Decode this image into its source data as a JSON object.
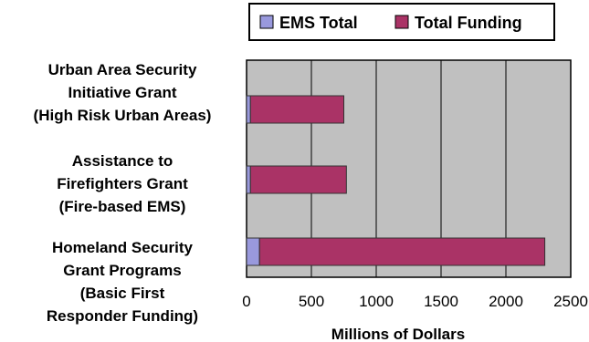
{
  "chart_data": {
    "type": "bar",
    "orientation": "horizontal",
    "stacked": true,
    "categories": [
      [
        "Urban Area Security",
        "Initiative Grant",
        "(High Risk Urban Areas)"
      ],
      [
        "Assistance to",
        "Firefighters Grant",
        "(Fire-based EMS)"
      ],
      [
        "Homeland Security",
        "Grant Programs",
        "(Basic First",
        "Responder Funding)"
      ]
    ],
    "series": [
      {
        "name": "EMS Total",
        "color": "#9999dd",
        "values": [
          30,
          30,
          100
        ]
      },
      {
        "name": "Total Funding",
        "color": "#aa3366",
        "values": [
          720,
          740,
          2200
        ]
      }
    ],
    "xlabel": "Millions of Dollars",
    "xlim": [
      0,
      2500
    ],
    "xticks": [
      0,
      500,
      1000,
      1500,
      2000,
      2500
    ],
    "grid": true,
    "plot_background": "#c0c0c0",
    "gridline_color": "#000000",
    "legend_position": "top"
  }
}
